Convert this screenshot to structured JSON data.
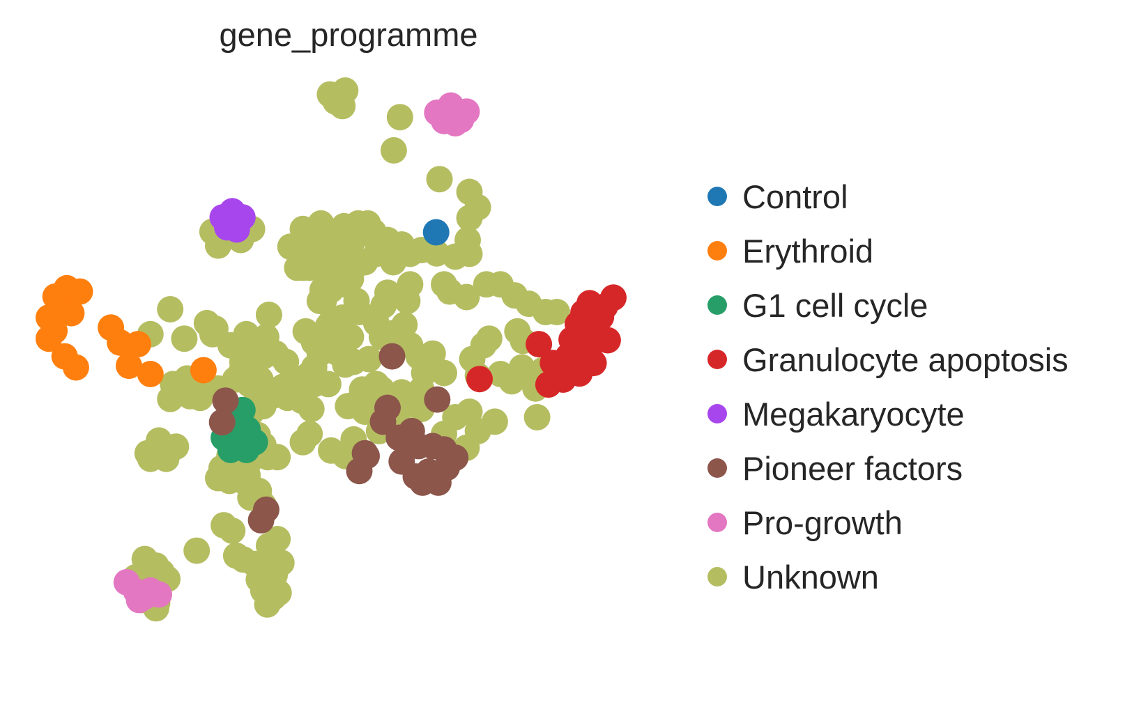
{
  "chart_data": {
    "type": "scatter",
    "title": "gene_programme",
    "xlabel": "",
    "ylabel": "",
    "grid": false,
    "axes_visible": false,
    "xlim": [
      0,
      1
    ],
    "ylim": [
      0,
      1
    ],
    "legend_position": "right",
    "series": [
      {
        "name": "Control",
        "color": "#1f77b4",
        "points": [
          [
            0.686,
            0.744
          ]
        ]
      },
      {
        "name": "Erythroid",
        "color": "#ff7f0e",
        "points": [
          [
            0.0,
            0.59
          ],
          [
            0.012,
            0.628
          ],
          [
            0.032,
            0.643
          ],
          [
            0.055,
            0.637
          ],
          [
            0.02,
            0.6
          ],
          [
            0.04,
            0.598
          ],
          [
            0.0,
            0.552
          ],
          [
            0.028,
            0.52
          ],
          [
            0.048,
            0.5
          ],
          [
            0.11,
            0.572
          ],
          [
            0.126,
            0.545
          ],
          [
            0.158,
            0.542
          ],
          [
            0.142,
            0.503
          ],
          [
            0.18,
            0.488
          ],
          [
            0.274,
            0.495
          ],
          [
            0.01,
            0.566
          ]
        ]
      },
      {
        "name": "G1 cell cycle",
        "color": "#279e68",
        "points": [
          [
            0.343,
            0.423
          ],
          [
            0.325,
            0.406
          ],
          [
            0.31,
            0.373
          ],
          [
            0.333,
            0.373
          ],
          [
            0.352,
            0.388
          ],
          [
            0.365,
            0.365
          ],
          [
            0.35,
            0.351
          ],
          [
            0.322,
            0.351
          ]
        ]
      },
      {
        "name": "Granulocyte apoptosis",
        "color": "#d62728",
        "points": [
          [
            0.937,
            0.578
          ],
          [
            0.947,
            0.599
          ],
          [
            0.958,
            0.616
          ],
          [
            0.985,
            0.61
          ],
          [
            1.0,
            0.626
          ],
          [
            0.978,
            0.591
          ],
          [
            0.968,
            0.565
          ],
          [
            0.99,
            0.549
          ],
          [
            0.963,
            0.544
          ],
          [
            0.945,
            0.532
          ],
          [
            0.965,
            0.508
          ],
          [
            0.94,
            0.489
          ],
          [
            0.911,
            0.478
          ],
          [
            0.885,
            0.469
          ],
          [
            0.893,
            0.508
          ],
          [
            0.868,
            0.542
          ],
          [
            0.926,
            0.55
          ],
          [
            0.92,
            0.52
          ],
          [
            0.763,
            0.479
          ]
        ]
      },
      {
        "name": "Megakaryocyte",
        "color": "#a846ed",
        "points": [
          [
            0.308,
            0.771
          ],
          [
            0.325,
            0.782
          ],
          [
            0.343,
            0.771
          ],
          [
            0.333,
            0.749
          ],
          [
            0.316,
            0.753
          ]
        ]
      },
      {
        "name": "Pioneer factors",
        "color": "#8c564b",
        "points": [
          [
            0.313,
            0.44
          ],
          [
            0.307,
            0.401
          ],
          [
            0.608,
            0.52
          ],
          [
            0.688,
            0.442
          ],
          [
            0.6,
            0.427
          ],
          [
            0.643,
            0.385
          ],
          [
            0.62,
            0.373
          ],
          [
            0.655,
            0.358
          ],
          [
            0.68,
            0.358
          ],
          [
            0.7,
            0.352
          ],
          [
            0.72,
            0.337
          ],
          [
            0.705,
            0.319
          ],
          [
            0.673,
            0.312
          ],
          [
            0.65,
            0.303
          ],
          [
            0.662,
            0.292
          ],
          [
            0.69,
            0.292
          ],
          [
            0.625,
            0.33
          ],
          [
            0.592,
            0.402
          ],
          [
            0.563,
            0.34
          ],
          [
            0.55,
            0.313
          ],
          [
            0.56,
            0.345
          ],
          [
            0.376,
            0.224
          ],
          [
            0.385,
            0.243
          ]
        ]
      },
      {
        "name": "Pro-growth",
        "color": "#e377c2",
        "points": [
          [
            0.688,
            0.96
          ],
          [
            0.712,
            0.973
          ],
          [
            0.74,
            0.962
          ],
          [
            0.72,
            0.941
          ],
          [
            0.7,
            0.945
          ],
          [
            0.73,
            0.947
          ],
          [
            0.138,
            0.112
          ],
          [
            0.155,
            0.095
          ],
          [
            0.17,
            0.086
          ],
          [
            0.18,
            0.097
          ],
          [
            0.195,
            0.09
          ],
          [
            0.16,
            0.08
          ]
        ]
      },
      {
        "name": "Unknown",
        "color": "#b5bd61",
        "points": [
          [
            0.525,
            1.0
          ],
          [
            0.508,
            0.98
          ],
          [
            0.52,
            0.972
          ],
          [
            0.498,
            0.993
          ],
          [
            0.622,
            0.952
          ],
          [
            0.611,
            0.892
          ],
          [
            0.692,
            0.84
          ],
          [
            0.745,
            0.817
          ],
          [
            0.76,
            0.789
          ],
          [
            0.745,
            0.77
          ],
          [
            0.742,
            0.73
          ],
          [
            0.745,
            0.705
          ],
          [
            0.687,
            0.706
          ],
          [
            0.72,
            0.7
          ],
          [
            0.7,
            0.65
          ],
          [
            0.71,
            0.637
          ],
          [
            0.74,
            0.627
          ],
          [
            0.775,
            0.65
          ],
          [
            0.8,
            0.65
          ],
          [
            0.825,
            0.63
          ],
          [
            0.85,
            0.615
          ],
          [
            0.88,
            0.6
          ],
          [
            0.9,
            0.6
          ],
          [
            0.83,
            0.565
          ],
          [
            0.84,
            0.548
          ],
          [
            0.78,
            0.552
          ],
          [
            0.77,
            0.54
          ],
          [
            0.75,
            0.515
          ],
          [
            0.76,
            0.485
          ],
          [
            0.8,
            0.488
          ],
          [
            0.82,
            0.475
          ],
          [
            0.838,
            0.5
          ],
          [
            0.862,
            0.462
          ],
          [
            0.875,
            0.495
          ],
          [
            0.865,
            0.41
          ],
          [
            0.79,
            0.402
          ],
          [
            0.76,
            0.385
          ],
          [
            0.745,
            0.42
          ],
          [
            0.72,
            0.41
          ],
          [
            0.74,
            0.355
          ],
          [
            0.7,
            0.38
          ],
          [
            0.66,
            0.425
          ],
          [
            0.62,
            0.42
          ],
          [
            0.6,
            0.4
          ],
          [
            0.585,
            0.385
          ],
          [
            0.56,
            0.425
          ],
          [
            0.54,
            0.37
          ],
          [
            0.525,
            0.34
          ],
          [
            0.5,
            0.35
          ],
          [
            0.462,
            0.38
          ],
          [
            0.45,
            0.365
          ],
          [
            0.405,
            0.338
          ],
          [
            0.388,
            0.338
          ],
          [
            0.38,
            0.36
          ],
          [
            0.37,
            0.378
          ],
          [
            0.355,
            0.33
          ],
          [
            0.344,
            0.295
          ],
          [
            0.32,
            0.295
          ],
          [
            0.3,
            0.3
          ],
          [
            0.306,
            0.318
          ],
          [
            0.32,
            0.34
          ],
          [
            0.336,
            0.318
          ],
          [
            0.352,
            0.305
          ],
          [
            0.372,
            0.277
          ],
          [
            0.357,
            0.265
          ],
          [
            0.38,
            0.252
          ],
          [
            0.31,
            0.215
          ],
          [
            0.325,
            0.205
          ],
          [
            0.345,
            0.153
          ],
          [
            0.365,
            0.145
          ],
          [
            0.332,
            0.16
          ],
          [
            0.393,
            0.14
          ],
          [
            0.412,
            0.147
          ],
          [
            0.407,
            0.093
          ],
          [
            0.398,
            0.085
          ],
          [
            0.387,
            0.072
          ],
          [
            0.38,
            0.097
          ],
          [
            0.372,
            0.117
          ],
          [
            0.39,
            0.178
          ],
          [
            0.405,
            0.19
          ],
          [
            0.4,
            0.125
          ],
          [
            0.262,
            0.169
          ],
          [
            0.17,
            0.154
          ],
          [
            0.19,
            0.142
          ],
          [
            0.2,
            0.13
          ],
          [
            0.175,
            0.135
          ],
          [
            0.154,
            0.121
          ],
          [
            0.21,
            0.118
          ],
          [
            0.192,
            0.075
          ],
          [
            0.19,
            0.065
          ],
          [
            0.178,
            0.09
          ],
          [
            0.165,
            0.08
          ],
          [
            0.17,
            0.097
          ],
          [
            0.19,
            0.353
          ],
          [
            0.21,
            0.355
          ],
          [
            0.225,
            0.357
          ],
          [
            0.208,
            0.335
          ],
          [
            0.18,
            0.335
          ],
          [
            0.175,
            0.345
          ],
          [
            0.195,
            0.368
          ],
          [
            0.2,
            0.345
          ],
          [
            0.215,
            0.443
          ],
          [
            0.23,
            0.46
          ],
          [
            0.25,
            0.448
          ],
          [
            0.22,
            0.47
          ],
          [
            0.245,
            0.48
          ],
          [
            0.285,
            0.462
          ],
          [
            0.268,
            0.445
          ],
          [
            0.3,
            0.462
          ],
          [
            0.24,
            0.552
          ],
          [
            0.28,
            0.58
          ],
          [
            0.295,
            0.57
          ],
          [
            0.29,
            0.56
          ],
          [
            0.322,
            0.54
          ],
          [
            0.333,
            0.54
          ],
          [
            0.35,
            0.56
          ],
          [
            0.362,
            0.545
          ],
          [
            0.385,
            0.555
          ],
          [
            0.38,
            0.52
          ],
          [
            0.365,
            0.52
          ],
          [
            0.343,
            0.51
          ],
          [
            0.34,
            0.49
          ],
          [
            0.33,
            0.478
          ],
          [
            0.355,
            0.47
          ],
          [
            0.375,
            0.478
          ],
          [
            0.402,
            0.525
          ],
          [
            0.39,
            0.595
          ],
          [
            0.42,
            0.51
          ],
          [
            0.415,
            0.465
          ],
          [
            0.44,
            0.47
          ],
          [
            0.4,
            0.45
          ],
          [
            0.38,
            0.43
          ],
          [
            0.36,
            0.42
          ],
          [
            0.368,
            0.454
          ],
          [
            0.423,
            0.445
          ],
          [
            0.448,
            0.44
          ],
          [
            0.465,
            0.425
          ],
          [
            0.455,
            0.565
          ],
          [
            0.47,
            0.545
          ],
          [
            0.485,
            0.55
          ],
          [
            0.495,
            0.575
          ],
          [
            0.487,
            0.62
          ],
          [
            0.5,
            0.64
          ],
          [
            0.5,
            0.582
          ],
          [
            0.52,
            0.59
          ],
          [
            0.515,
            0.56
          ],
          [
            0.535,
            0.555
          ],
          [
            0.54,
            0.51
          ],
          [
            0.525,
            0.505
          ],
          [
            0.51,
            0.527
          ],
          [
            0.48,
            0.525
          ],
          [
            0.47,
            0.5
          ],
          [
            0.458,
            0.485
          ],
          [
            0.47,
            0.47
          ],
          [
            0.495,
            0.47
          ],
          [
            0.555,
            0.46
          ],
          [
            0.58,
            0.47
          ],
          [
            0.567,
            0.515
          ],
          [
            0.59,
            0.555
          ],
          [
            0.61,
            0.562
          ],
          [
            0.63,
            0.577
          ],
          [
            0.62,
            0.54
          ],
          [
            0.64,
            0.54
          ],
          [
            0.655,
            0.52
          ],
          [
            0.68,
            0.525
          ],
          [
            0.7,
            0.49
          ],
          [
            0.665,
            0.49
          ],
          [
            0.66,
            0.46
          ],
          [
            0.645,
            0.45
          ],
          [
            0.625,
            0.455
          ],
          [
            0.59,
            0.46
          ],
          [
            0.575,
            0.44
          ],
          [
            0.56,
            0.42
          ],
          [
            0.55,
            0.44
          ],
          [
            0.53,
            0.43
          ],
          [
            0.535,
            0.66
          ],
          [
            0.525,
            0.7
          ],
          [
            0.535,
            0.72
          ],
          [
            0.55,
            0.74
          ],
          [
            0.548,
            0.76
          ],
          [
            0.565,
            0.76
          ],
          [
            0.575,
            0.745
          ],
          [
            0.6,
            0.73
          ],
          [
            0.625,
            0.722
          ],
          [
            0.64,
            0.705
          ],
          [
            0.66,
            0.712
          ],
          [
            0.58,
            0.705
          ],
          [
            0.56,
            0.69
          ],
          [
            0.54,
            0.68
          ],
          [
            0.525,
            0.65
          ],
          [
            0.51,
            0.69
          ],
          [
            0.5,
            0.73
          ],
          [
            0.505,
            0.745
          ],
          [
            0.523,
            0.755
          ],
          [
            0.482,
            0.76
          ],
          [
            0.47,
            0.73
          ],
          [
            0.472,
            0.7
          ],
          [
            0.495,
            0.668
          ],
          [
            0.45,
            0.75
          ],
          [
            0.452,
            0.73
          ],
          [
            0.46,
            0.7
          ],
          [
            0.428,
            0.718
          ],
          [
            0.44,
            0.68
          ],
          [
            0.462,
            0.68
          ],
          [
            0.485,
            0.64
          ],
          [
            0.48,
            0.62
          ],
          [
            0.45,
            0.68
          ],
          [
            0.635,
            0.62
          ],
          [
            0.64,
            0.65
          ],
          [
            0.6,
            0.635
          ],
          [
            0.593,
            0.612
          ],
          [
            0.58,
            0.58
          ],
          [
            0.545,
            0.62
          ],
          [
            0.55,
            0.6
          ],
          [
            0.61,
            0.69
          ],
          [
            0.29,
            0.745
          ],
          [
            0.3,
            0.72
          ],
          [
            0.34,
            0.73
          ],
          [
            0.36,
            0.75
          ],
          [
            0.215,
            0.605
          ],
          [
            0.18,
            0.56
          ]
        ]
      }
    ]
  }
}
